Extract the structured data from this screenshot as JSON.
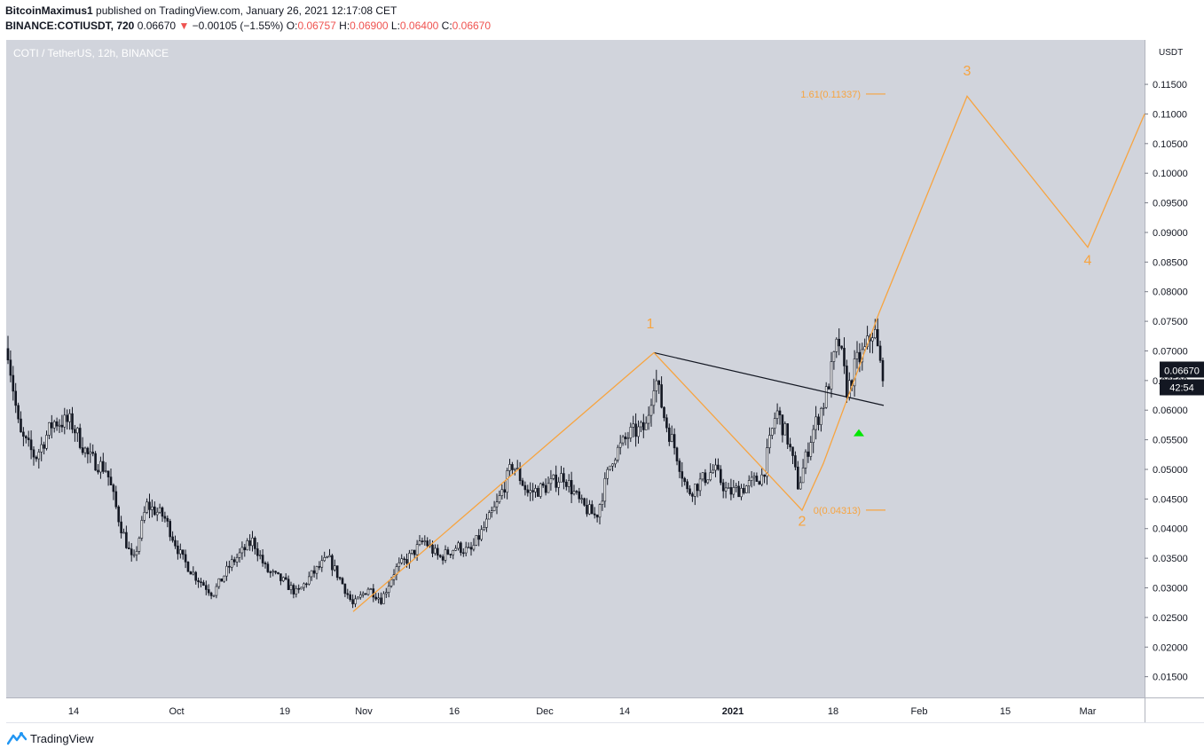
{
  "header": {
    "publisher": "BitcoinMaximus1",
    "published_text": "published on TradingView.com, January 26, 2021 12:17:08 CET",
    "symbol": "BINANCE:COTIUSDT, 720",
    "last": "0.06670",
    "change_arrow": "▼",
    "change": "−0.00105 (−1.55%)",
    "open_label": "O:",
    "open": "0.06757",
    "high_label": "H:",
    "high": "0.06900",
    "low_label": "L:",
    "low": "0.06400",
    "close_label": "C:",
    "close": "0.06670"
  },
  "footer": {
    "brand": "TradingView"
  },
  "colors": {
    "plot_bg": "#d1d4dc",
    "candle": "#131722",
    "wave": "#f7a440",
    "trendline": "#131722",
    "arrow": "#00e600",
    "price_badge": "#131722"
  },
  "chart_data": {
    "type": "candlestick",
    "legend": "COTI / TetherUS, 12h, BINANCE",
    "y_unit": "USDT",
    "ylim": [
      0.0115,
      0.1225
    ],
    "y_ticks": [
      "0.01500",
      "0.02000",
      "0.02500",
      "0.03000",
      "0.03500",
      "0.04000",
      "0.04500",
      "0.05000",
      "0.05500",
      "0.06000",
      "0.06500",
      "0.07000",
      "0.07500",
      "0.08000",
      "0.08500",
      "0.09000",
      "0.09500",
      "0.10000",
      "0.10500",
      "0.11000",
      "0.11500"
    ],
    "x_ticks": [
      "14",
      "Oct",
      "19",
      "Nov",
      "16",
      "Dec",
      "14",
      "2021",
      "18",
      "Feb",
      "15",
      "Mar"
    ],
    "last_price_label": "0.06670",
    "countdown_label": "42:54",
    "price_path": [
      [
        0,
        0.083
      ],
      [
        10,
        0.069
      ],
      [
        22,
        0.056
      ],
      [
        40,
        0.052
      ],
      [
        60,
        0.058
      ],
      [
        80,
        0.058
      ],
      [
        100,
        0.052
      ],
      [
        120,
        0.05
      ],
      [
        135,
        0.041
      ],
      [
        150,
        0.034
      ],
      [
        165,
        0.044
      ],
      [
        185,
        0.042
      ],
      [
        205,
        0.035
      ],
      [
        220,
        0.032
      ],
      [
        240,
        0.029
      ],
      [
        260,
        0.034
      ],
      [
        285,
        0.038
      ],
      [
        300,
        0.033
      ],
      [
        320,
        0.031
      ],
      [
        335,
        0.029
      ],
      [
        350,
        0.032
      ],
      [
        370,
        0.035
      ],
      [
        385,
        0.031
      ],
      [
        398,
        0.027
      ],
      [
        415,
        0.03
      ],
      [
        430,
        0.028
      ],
      [
        445,
        0.033
      ],
      [
        460,
        0.035
      ],
      [
        478,
        0.038
      ],
      [
        495,
        0.035
      ],
      [
        515,
        0.037
      ],
      [
        530,
        0.036
      ],
      [
        545,
        0.04
      ],
      [
        560,
        0.044
      ],
      [
        578,
        0.051
      ],
      [
        595,
        0.046
      ],
      [
        615,
        0.047
      ],
      [
        635,
        0.049
      ],
      [
        655,
        0.044
      ],
      [
        672,
        0.042
      ],
      [
        690,
        0.052
      ],
      [
        710,
        0.056
      ],
      [
        728,
        0.057
      ],
      [
        738,
        0.066
      ],
      [
        750,
        0.058
      ],
      [
        762,
        0.053
      ],
      [
        775,
        0.046
      ],
      [
        790,
        0.048
      ],
      [
        805,
        0.05
      ],
      [
        820,
        0.046
      ],
      [
        840,
        0.047
      ],
      [
        860,
        0.049
      ],
      [
        875,
        0.06
      ],
      [
        888,
        0.055
      ],
      [
        900,
        0.047
      ],
      [
        915,
        0.056
      ],
      [
        930,
        0.062
      ],
      [
        945,
        0.072
      ],
      [
        955,
        0.063
      ],
      [
        965,
        0.068
      ],
      [
        975,
        0.07
      ],
      [
        985,
        0.074
      ],
      [
        993,
        0.0667
      ]
    ],
    "wave_path": [
      [
        398,
        0.026
      ],
      [
        737,
        0.0697
      ],
      [
        904,
        0.0431
      ],
      [
        928,
        0.051
      ],
      [
        991,
        0.0765
      ],
      [
        1090,
        0.113
      ],
      [
        1226,
        0.0875
      ],
      [
        1290,
        0.11
      ]
    ],
    "trendline": [
      [
        737,
        0.0697
      ],
      [
        996,
        0.0608
      ]
    ],
    "wave_labels": [
      {
        "text": "1",
        "x": 733,
        "y": 0.0738
      },
      {
        "text": "2",
        "x": 904,
        "y": 0.0405
      },
      {
        "text": "3",
        "x": 1090,
        "y": 0.1165
      },
      {
        "text": "4",
        "x": 1226,
        "y": 0.0845
      }
    ],
    "fib_levels": [
      {
        "label": "1.61(0.11337)",
        "value": 0.11337,
        "x": 970
      },
      {
        "label": "0(0.04313)",
        "value": 0.04313,
        "x": 970
      }
    ],
    "arrow": {
      "x": 968,
      "y": 0.0562
    }
  }
}
